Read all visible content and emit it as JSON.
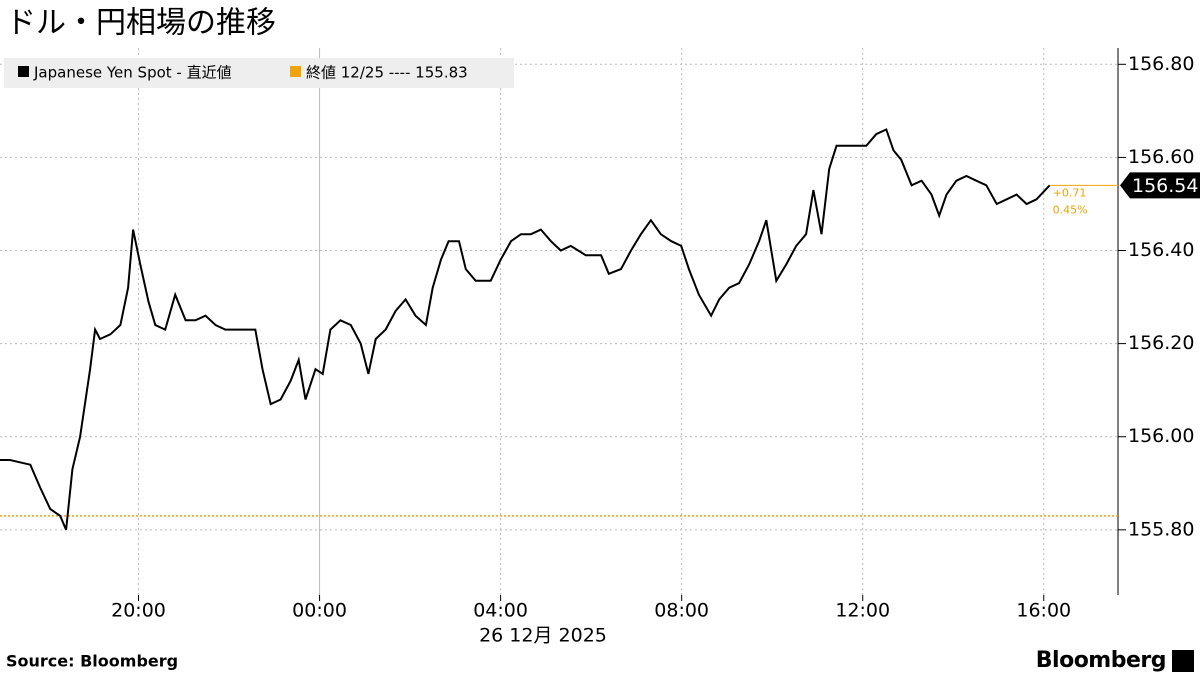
{
  "chart_data": {
    "type": "line",
    "title": "ドル・円相場の推移",
    "source": "Source: Bloomberg",
    "logo": "Bloomberg",
    "x_sublabel": "26 12月 2025",
    "series": [
      {
        "name": "Japanese Yen Spot - 直近値",
        "color": "#000000",
        "x": [
          -7.06,
          -6.84,
          -6.62,
          -6.39,
          -6.17,
          -5.95,
          -5.73,
          -5.6,
          -5.46,
          -5.29,
          -5.07,
          -4.96,
          -4.85,
          -4.62,
          -4.4,
          -4.23,
          -4.12,
          -3.96,
          -3.78,
          -3.63,
          -3.41,
          -3.19,
          -2.96,
          -2.74,
          -2.52,
          -2.3,
          -2.08,
          -1.86,
          -1.64,
          -1.42,
          -1.26,
          -1.08,
          -0.86,
          -0.64,
          -0.46,
          -0.31,
          -0.09,
          0.07,
          0.24,
          0.46,
          0.69,
          0.91,
          1.08,
          1.24,
          1.46,
          1.68,
          1.9,
          2.12,
          2.35,
          2.5,
          2.68,
          2.85,
          3.08,
          3.23,
          3.45,
          3.78,
          4.0,
          4.23,
          4.45,
          4.67,
          4.89,
          5.11,
          5.33,
          5.55,
          5.88,
          6.22,
          6.39,
          6.66,
          6.88,
          7.1,
          7.32,
          7.54,
          7.77,
          7.99,
          8.16,
          8.38,
          8.65,
          8.83,
          9.05,
          9.27,
          9.49,
          9.71,
          9.87,
          10.09,
          10.31,
          10.53,
          10.75,
          10.91,
          11.09,
          11.26,
          11.42,
          11.64,
          11.86,
          12.08,
          12.3,
          12.52,
          12.68,
          12.85,
          13.08,
          13.3,
          13.52,
          13.69,
          13.85,
          14.07,
          14.29,
          14.51,
          14.73,
          14.96,
          15.18,
          15.4,
          15.62,
          15.84,
          16.13
        ],
        "values": [
          155.95,
          155.95,
          155.945,
          155.94,
          155.89,
          155.845,
          155.83,
          155.8,
          155.93,
          156.0,
          156.145,
          156.23,
          156.21,
          156.22,
          156.24,
          156.32,
          156.445,
          156.37,
          156.29,
          156.24,
          156.23,
          156.305,
          156.25,
          156.25,
          156.26,
          156.24,
          156.23,
          156.23,
          156.23,
          156.23,
          156.145,
          156.07,
          156.08,
          156.12,
          156.165,
          156.08,
          156.145,
          156.135,
          156.23,
          156.25,
          156.24,
          156.2,
          156.135,
          156.21,
          156.23,
          156.27,
          156.295,
          156.26,
          156.24,
          156.32,
          156.38,
          156.42,
          156.42,
          156.36,
          156.335,
          156.335,
          156.38,
          156.42,
          156.435,
          156.435,
          156.445,
          156.42,
          156.4,
          156.41,
          156.39,
          156.39,
          156.35,
          156.36,
          156.4,
          156.435,
          156.465,
          156.435,
          156.42,
          156.41,
          156.36,
          156.305,
          156.26,
          156.295,
          156.32,
          156.33,
          156.37,
          156.42,
          156.465,
          156.335,
          156.37,
          156.41,
          156.435,
          156.53,
          156.435,
          156.575,
          156.625,
          156.625,
          156.625,
          156.625,
          156.65,
          156.66,
          156.615,
          156.595,
          156.54,
          156.55,
          156.52,
          156.475,
          156.52,
          156.55,
          156.56,
          156.55,
          156.54,
          156.5,
          156.51,
          156.52,
          156.5,
          156.51,
          156.54
        ]
      }
    ],
    "last_value": 156.54,
    "change_labels": [
      "+0.71",
      "0.45%"
    ],
    "reference_line": {
      "value": 155.83,
      "label": "終値 12/25 ---- 155.83",
      "color": "#f0a30a"
    },
    "xlim": [
      -7.06,
      17.64
    ],
    "xticks": [
      {
        "value": -4,
        "label": "20:00"
      },
      {
        "value": 0,
        "label": "00:00"
      },
      {
        "value": 4,
        "label": "04:00"
      },
      {
        "value": 8,
        "label": "08:00"
      },
      {
        "value": 12,
        "label": "12:00"
      },
      {
        "value": 16,
        "label": "16:00"
      }
    ],
    "ylim": [
      155.66,
      156.835
    ],
    "yticks": [
      {
        "value": 155.8,
        "label": "155.80"
      },
      {
        "value": 156,
        "label": "156.00"
      },
      {
        "value": 156.2,
        "label": "156.20"
      },
      {
        "value": 156.4,
        "label": "156.40"
      },
      {
        "value": 156.6,
        "label": "156.60"
      },
      {
        "value": 156.8,
        "label": "156.80"
      }
    ],
    "grid": true
  }
}
